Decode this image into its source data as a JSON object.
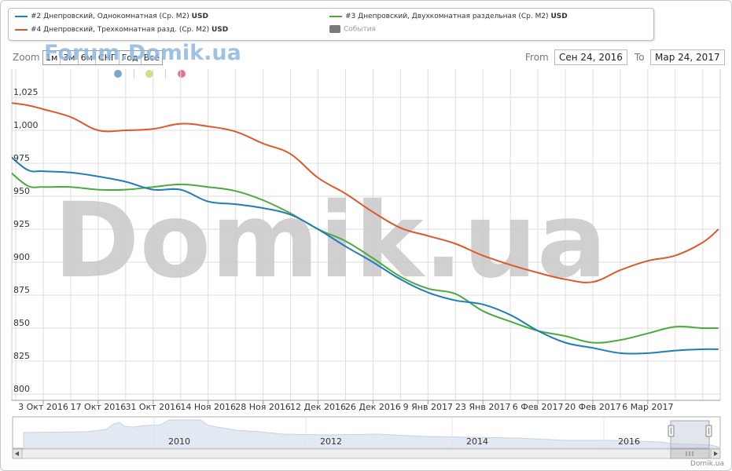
{
  "legend": {
    "s1": {
      "label": "#2 Днепровский, Однокомнатная (Ср. M2)",
      "unit": "USD"
    },
    "s3": {
      "label": "#3 Днепровский, Двухкомнатная раздельная (Ср. M2)",
      "unit": "USD"
    },
    "s4": {
      "label": "#4 Днепровский, Трехкомнатная разд. (Ср. M2)",
      "unit": "USD"
    },
    "events": "События"
  },
  "zoom": {
    "label": "Zoom",
    "buttons": [
      "1м",
      "3м",
      "6м",
      "СНГ",
      "Год",
      "Всё"
    ]
  },
  "range": {
    "from_label": "From",
    "from_value": "Сен 24, 2016",
    "to_label": "To",
    "to_value": "Мар 24, 2017"
  },
  "watermarks": {
    "top": "Forum.Domik.ua",
    "center": "Domik.ua"
  },
  "navigator": {
    "year_labels": [
      "2010",
      "2012",
      "2014",
      "2016"
    ]
  },
  "credit": "Domik.ua",
  "colors": {
    "series1": "#1f7db8",
    "series3": "#4aaa3c",
    "series4": "#e0572a",
    "grid": "#dddddd",
    "dot_blue": "#7aa6d0",
    "dot_yellow": "#d2dc8c",
    "dot_pink": "#dc7896"
  },
  "chart_data": {
    "type": "line",
    "title": "",
    "xlabel": "",
    "ylabel": "",
    "ylim": [
      800,
      1025
    ],
    "yticks": [
      "800",
      "825",
      "850",
      "875",
      "900",
      "925",
      "950",
      "975",
      "1,000",
      "1,025"
    ],
    "x_tick_labels": [
      "3 Окт 2016",
      "17 Окт 2016",
      "31 Окт 2016",
      "14 Ноя 2016",
      "28 Ноя 2016",
      "12 Дек 2016",
      "26 Дек 2016",
      "9 Янв 2017",
      "23 Янв 2017",
      "6 Фев 2017",
      "20 Фев 2017",
      "6 Мар 2017"
    ],
    "x": [
      "2016-09-24",
      "2016-09-29",
      "2016-10-03",
      "2016-10-10",
      "2016-10-17",
      "2016-10-24",
      "2016-10-31",
      "2016-11-07",
      "2016-11-14",
      "2016-11-21",
      "2016-11-28",
      "2016-12-05",
      "2016-12-12",
      "2016-12-19",
      "2016-12-26",
      "2017-01-02",
      "2017-01-09",
      "2017-01-16",
      "2017-01-23",
      "2017-01-30",
      "2017-02-06",
      "2017-02-13",
      "2017-02-20",
      "2017-02-27",
      "2017-03-06",
      "2017-03-13",
      "2017-03-20",
      "2017-03-24"
    ],
    "series": [
      {
        "name": "#2 Днепровский, Однокомнатная (Ср. M2)",
        "values": [
          982,
          970,
          969,
          968,
          965,
          961,
          955,
          955,
          946,
          944,
          941,
          936,
          925,
          912,
          900,
          887,
          877,
          871,
          868,
          860,
          848,
          839,
          835,
          831,
          831,
          833,
          834,
          834
        ]
      },
      {
        "name": "#3 Днепровский, Двухкомнатная раздельная (Ср. M2)",
        "values": [
          970,
          958,
          957,
          957,
          955,
          955,
          957,
          959,
          957,
          954,
          947,
          937,
          925,
          916,
          903,
          889,
          880,
          876,
          863,
          855,
          848,
          844,
          839,
          841,
          846,
          851,
          850,
          850
        ]
      },
      {
        "name": "#4 Днепровский, Трехкомнатная разд. (Ср. M2)",
        "values": [
          1021,
          1019,
          1016,
          1010,
          1000,
          1000,
          1001,
          1005,
          1003,
          999,
          990,
          982,
          964,
          952,
          938,
          926,
          920,
          914,
          905,
          898,
          892,
          887,
          885,
          894,
          901,
          905,
          915,
          925
        ]
      }
    ],
    "legend_position": "top",
    "grid": true
  }
}
